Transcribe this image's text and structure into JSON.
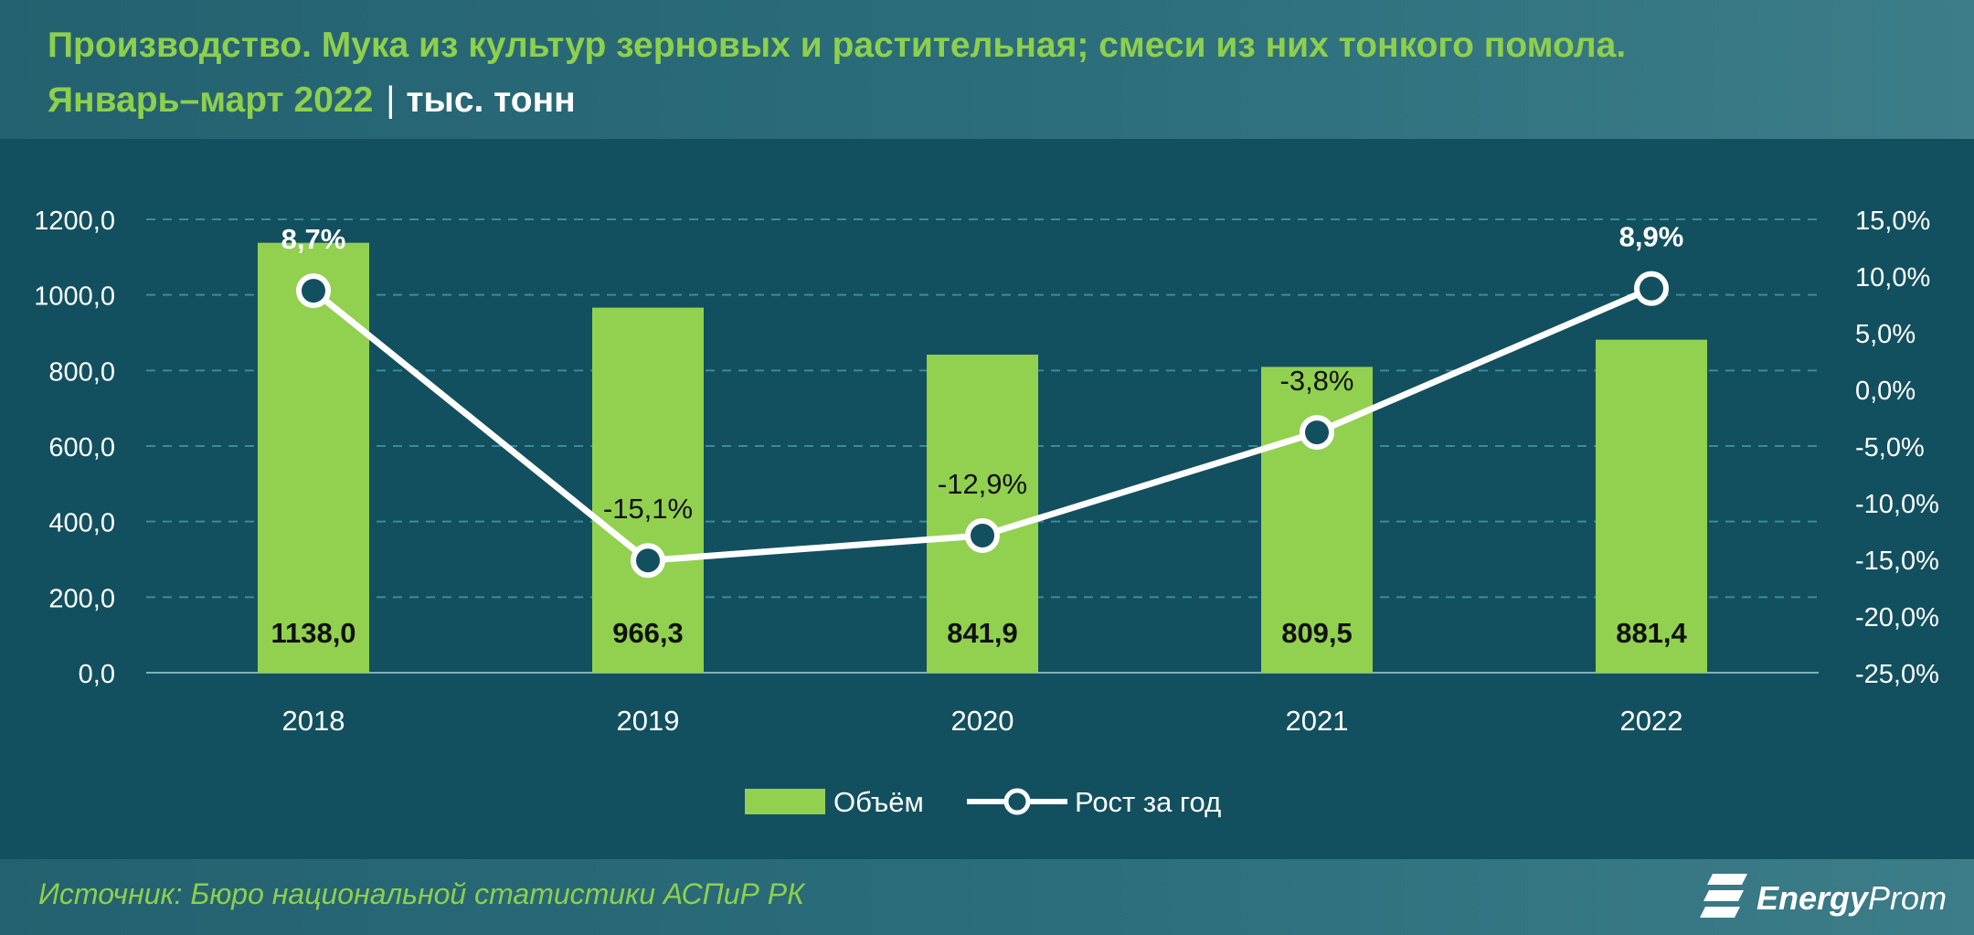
{
  "header": {
    "title_line1": "Производство. Мука из культур зерновых и растительная; смеси из них тонкого помола.",
    "title_line2": "Январь–март 2022",
    "separator": "|",
    "unit": "тыс. тонн"
  },
  "chart_data": {
    "type": "bar",
    "categories": [
      "2018",
      "2019",
      "2020",
      "2021",
      "2022"
    ],
    "series": [
      {
        "name": "Объём",
        "type": "bar",
        "axis": "left",
        "values": [
          1138.0,
          966.3,
          841.9,
          809.5,
          881.4
        ],
        "labels": [
          "1138,0",
          "966,3",
          "841,9",
          "809,5",
          "881,4"
        ],
        "color": "#92d050"
      },
      {
        "name": "Рост за год",
        "type": "line",
        "axis": "right",
        "values": [
          8.7,
          -15.1,
          -12.9,
          -3.8,
          8.9
        ],
        "labels": [
          "8,7%",
          "-15,1%",
          "-12,9%",
          "-3,8%",
          "8,9%"
        ],
        "color": "#ffffff"
      }
    ],
    "y_left": {
      "min": 0,
      "max": 1200,
      "step": 200,
      "ticks": [
        "0,0",
        "200,0",
        "400,0",
        "600,0",
        "800,0",
        "1000,0",
        "1200,0"
      ]
    },
    "y_right": {
      "min": -25,
      "max": 15,
      "step": 5,
      "ticks": [
        "-25,0%",
        "-20,0%",
        "-15,0%",
        "-10,0%",
        "-5,0%",
        "0,0%",
        "5,0%",
        "10,0%",
        "15,0%"
      ]
    },
    "grid": true,
    "legend_position": "bottom-center"
  },
  "footer": {
    "source": "Источник: Бюро национальной статистики АСПиР РК",
    "logo_bold": "Energy",
    "logo_light": "Prom"
  },
  "colors": {
    "accent_green": "#8ecf4c",
    "bar_green": "#92d050",
    "background": "#12505f"
  }
}
